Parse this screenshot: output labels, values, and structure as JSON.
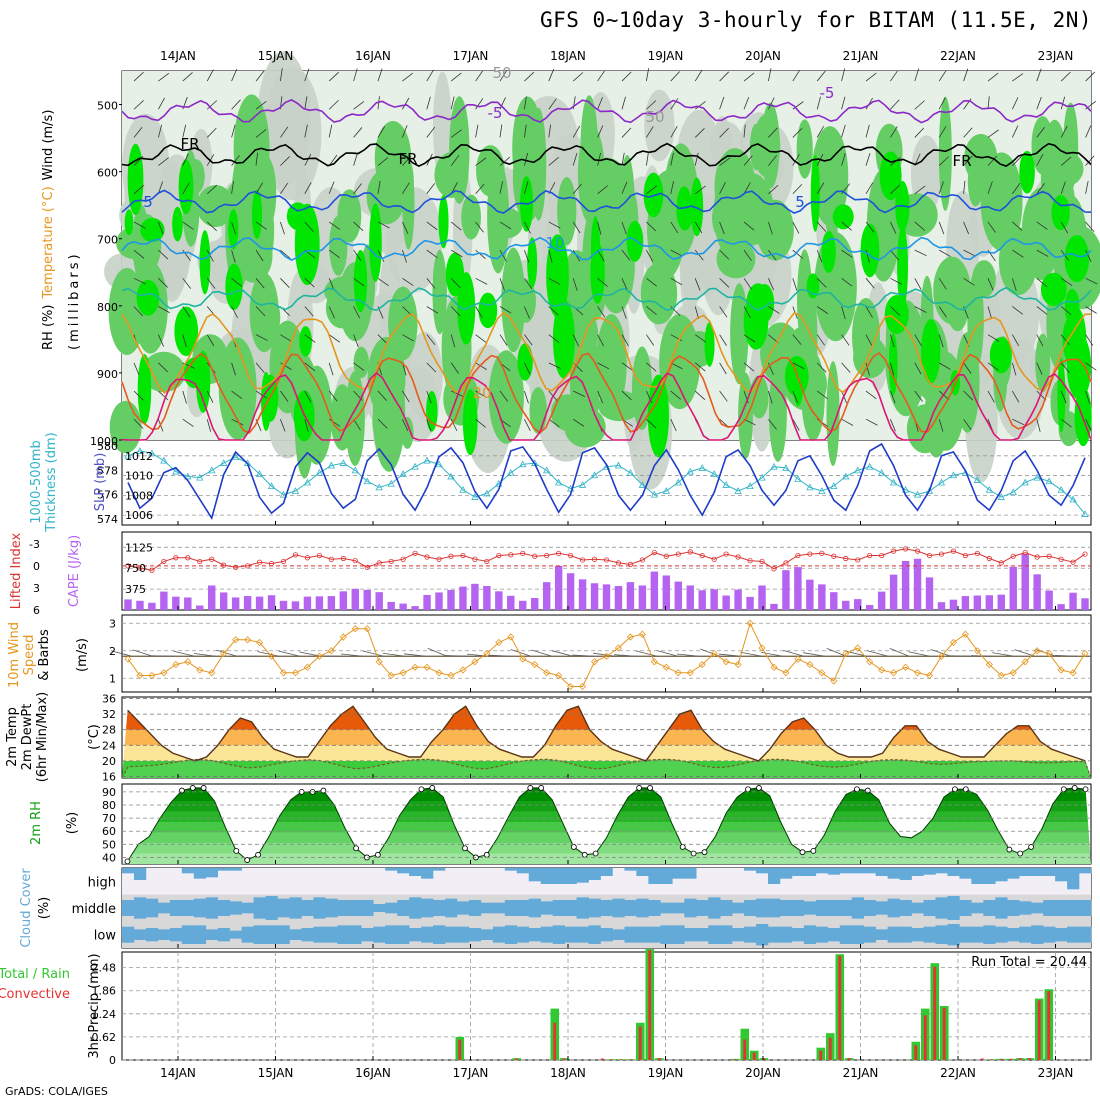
{
  "title": "GFS 0~10day 3-hourly for BITAM (11.5E, 2N)",
  "footer": "GrADS: COLA/IGES",
  "colors": {
    "rh_light": "#e6f0e6",
    "rh_grey": "#c8d2c8",
    "rh_green": "#64cd64",
    "rh_bright": "#00e600",
    "slp_line": "#1e3cc8",
    "thickness_line": "#32b4c8",
    "lifted_index": "#dc3232",
    "cape_bar": "#b464f0",
    "wind_speed": "#e6961e",
    "temp_fill_high": "#e65a0a",
    "temp_fill_mid": "#fab450",
    "temp_fill_low": "#fae696",
    "dewpoint_fill": "#3ccd3c",
    "rh2m_fill": "#00a000",
    "cloud_blue": "#64aad8",
    "precip_total": "#32c832",
    "precip_conv": "#e63232"
  },
  "chart_data": [
    {
      "type": "heatmap",
      "name": "Vertical cross-section",
      "ylabel_parts": [
        "RH (%)",
        "Temperature (°C)",
        "Wind (m/s)"
      ],
      "yunit": "(millibars)",
      "ylim": [
        1000,
        450
      ],
      "yticks": [
        "500",
        "600",
        "700",
        "800",
        "900",
        "1000"
      ],
      "x_dates": [
        "14JAN",
        "15JAN",
        "16JAN",
        "17JAN",
        "18JAN",
        "19JAN",
        "20JAN",
        "21JAN",
        "22JAN",
        "23JAN"
      ],
      "contour_labels": [
        "-5",
        "-5",
        "FR",
        "FR",
        "FR",
        "5",
        "5",
        "10",
        "20",
        "50",
        "50"
      ],
      "isotherms": [
        {
          "name": "-5",
          "level_mb": 510,
          "color": "#8c28c8"
        },
        {
          "name": "FR",
          "level_mb": 575,
          "color": "#000000"
        },
        {
          "name": "5",
          "level_mb": 645,
          "color": "#1e50dc"
        },
        {
          "name": "10",
          "level_mb": 715,
          "color": "#1e96e6"
        },
        {
          "name": "15",
          "level_mb": 790,
          "color": "#1eb4a0"
        },
        {
          "name": "20",
          "level_mb": 870,
          "color": "#e6961e"
        },
        {
          "name": "25",
          "level_mb": 930,
          "color": "#e65a1e"
        },
        {
          "name": "30",
          "level_mb": 960,
          "color": "#dc1478"
        }
      ]
    },
    {
      "type": "line",
      "name": "SLP and 1000-500mb thickness",
      "ylabel_left": "1000-500mb Thickness (dm)",
      "ylabel_right": "SLP (mb)",
      "left_ticks": [
        "580",
        "578",
        "576",
        "574"
      ],
      "right_ticks": [
        "1012",
        "1010",
        "1008",
        "1006"
      ],
      "left_lim": [
        573.5,
        580.5
      ],
      "right_lim": [
        1005,
        1013.6
      ],
      "slp_mb": [
        1009.3,
        1006.7,
        1007.7,
        1010.3,
        1010.8,
        1009.5,
        1007.6,
        1005.7,
        1010.1,
        1012.4,
        1011.2,
        1007.8,
        1006.2,
        1007.2,
        1010.9,
        1012.3,
        1011.3,
        1008.2,
        1006.7,
        1007.6,
        1011.5,
        1012.7,
        1011.1,
        1008.1,
        1006.5,
        1008.8,
        1011.9,
        1012.8,
        1011.3,
        1008.4,
        1006.7,
        1008.6,
        1012.5,
        1012.9,
        1011.2,
        1008.6,
        1006.3,
        1008.1,
        1012.3,
        1012.8,
        1011.1,
        1008.0,
        1006.5,
        1008.0,
        1011.0,
        1012.6,
        1010.6,
        1008.0,
        1006.0,
        1008.3,
        1011.9,
        1012.6,
        1011.0,
        1008.5,
        1007.0,
        1008.5,
        1011.5,
        1012.0,
        1010.0,
        1007.5,
        1006.5,
        1009.0,
        1012.5,
        1013.2,
        1011.0,
        1008.0,
        1006.5,
        1008.5,
        1012.0,
        1012.4,
        1010.5,
        1007.5,
        1006.5,
        1008.5,
        1011.5,
        1012.5,
        1010.5,
        1008.0,
        1007.0,
        1009.0,
        1011.8
      ],
      "thickness_dm": [
        579.2,
        579.6,
        579.4,
        578.8,
        577.9,
        577.5,
        577.4,
        578.0,
        578.6,
        579.1,
        578.6,
        577.7,
        576.7,
        576.0,
        576.3,
        577.0,
        577.8,
        578.4,
        578.6,
        578.0,
        577.1,
        576.6,
        576.9,
        577.7,
        578.3,
        578.8,
        578.5,
        577.5,
        576.4,
        575.8,
        576.1,
        576.9,
        577.8,
        578.5,
        578.6,
        578.0,
        577.0,
        576.5,
        576.8,
        577.6,
        578.3,
        578.4,
        577.8,
        576.8,
        576.0,
        576.3,
        577.0,
        577.9,
        578.2,
        577.7,
        576.8,
        576.3,
        576.7,
        577.4,
        578.3,
        578.2,
        577.3,
        576.6,
        576.3,
        576.7,
        577.5,
        578.0,
        578.3,
        577.8,
        577.0,
        576.4,
        576.0,
        576.3,
        577.0,
        577.6,
        577.8,
        577.2,
        576.4,
        575.8,
        576.2,
        577.0,
        577.4,
        577.1,
        576.4,
        575.6,
        574.4
      ]
    },
    {
      "type": "bar",
      "name": "Lifted Index and CAPE",
      "ylabel_left": "Lifted Index",
      "ylabel_right": "CAPE (J/kg)",
      "left_ticks": [
        "-3",
        "0",
        "3",
        "6"
      ],
      "right_ticks": [
        "1125",
        "750",
        "375"
      ],
      "left_lim": [
        6,
        -4.6
      ],
      "right_lim": [
        0,
        1400
      ],
      "lifted_index": [
        0.0,
        0.3,
        0.6,
        -0.6,
        -1.1,
        -1.1,
        -0.6,
        -0.9,
        -0.1,
        0.2,
        0.0,
        -0.5,
        -0.3,
        -0.6,
        -1.5,
        -1.1,
        -1.4,
        -0.9,
        -1.0,
        -0.7,
        0.2,
        -0.4,
        -0.6,
        -0.9,
        -1.7,
        -1.2,
        -0.9,
        -1.3,
        -1.4,
        -0.9,
        -0.6,
        -1.4,
        -1.5,
        -1.7,
        -1.3,
        -1.4,
        -1.7,
        -1.4,
        -0.8,
        -0.9,
        -0.8,
        -0.4,
        -0.2,
        -0.8,
        -1.8,
        -1.3,
        -1.6,
        -1.9,
        -1.4,
        -0.9,
        -1.6,
        -1.2,
        -0.7,
        -0.6,
        0.4,
        -0.4,
        -1.4,
        -1.6,
        -1.7,
        -1.3,
        -1.0,
        -0.8,
        -1.4,
        -1.4,
        -2.0,
        -2.3,
        -2.0,
        -1.4,
        -1.6,
        -2.0,
        -1.4,
        -1.7,
        -1.0,
        -0.4,
        -1.3,
        -1.8,
        -1.2,
        -1.3,
        -0.9,
        -0.5,
        -1.6
      ],
      "cape_jkg": [
        190,
        165,
        130,
        330,
        240,
        225,
        80,
        440,
        315,
        225,
        250,
        240,
        265,
        165,
        155,
        240,
        245,
        250,
        335,
        380,
        360,
        320,
        145,
        115,
        70,
        270,
        315,
        360,
        420,
        470,
        430,
        335,
        255,
        165,
        215,
        500,
        790,
        660,
        550,
        480,
        460,
        430,
        500,
        440,
        690,
        620,
        510,
        440,
        355,
        370,
        260,
        365,
        235,
        440,
        110,
        715,
        770,
        545,
        460,
        320,
        165,
        195,
        90,
        330,
        635,
        880,
        920,
        585,
        140,
        185,
        250,
        260,
        265,
        275,
        775,
        1005,
        640,
        350,
        105,
        310,
        210
      ],
      "cape_extra": [
        520,
        580
      ]
    },
    {
      "type": "line",
      "name": "10m Wind Speed & Barbs",
      "ylabel": "10m Wind Speed & Barbs (m/s)",
      "yticks": [
        "3",
        "2",
        "1"
      ],
      "ylim": [
        0.5,
        3.3
      ],
      "speed_ms": [
        1.7,
        1.1,
        1.1,
        1.2,
        1.5,
        1.6,
        1.3,
        1.2,
        1.9,
        2.4,
        2.4,
        2.3,
        1.8,
        1.2,
        1.2,
        1.4,
        1.8,
        2.0,
        2.5,
        2.8,
        2.8,
        1.6,
        1.1,
        1.2,
        1.4,
        1.4,
        1.2,
        1.1,
        1.3,
        1.6,
        1.9,
        2.3,
        2.5,
        1.7,
        1.5,
        1.2,
        1.1,
        0.7,
        0.7,
        1.6,
        1.8,
        2.1,
        2.5,
        2.6,
        1.6,
        1.4,
        1.2,
        1.2,
        1.5,
        1.9,
        1.6,
        1.5,
        3.0,
        2.1,
        1.4,
        1.2,
        1.7,
        1.5,
        1.2,
        0.9,
        1.9,
        2.1,
        1.6,
        1.3,
        1.2,
        1.4,
        1.2,
        1.1,
        1.8,
        2.3,
        2.6,
        2.0,
        1.5,
        1.1,
        1.2,
        1.6,
        2.0,
        1.9,
        1.3,
        1.2,
        1.9
      ],
      "barb_ref_ms": 1.8
    },
    {
      "type": "area",
      "name": "2m Temperature",
      "ylabel": "2m Temp 2m DewPt (6hr Min/Max) (°C)",
      "yticks": [
        "36",
        "32",
        "28",
        "24",
        "20",
        "16"
      ],
      "ylim": [
        15.6,
        36.4
      ],
      "temp_c": [
        33,
        30,
        27,
        24,
        22,
        21,
        20,
        21,
        24,
        28,
        31,
        30,
        26,
        23,
        22,
        21,
        21,
        25,
        29,
        32,
        34,
        30,
        26,
        23,
        22,
        21,
        21,
        25,
        28,
        32,
        34,
        29,
        25,
        23,
        22,
        21,
        21,
        24,
        29,
        33,
        34,
        28,
        25,
        23,
        22,
        21,
        20,
        24,
        28,
        32,
        33,
        28,
        25,
        23,
        22,
        21,
        20,
        23,
        27,
        30,
        31,
        28,
        24,
        22,
        21,
        21,
        21,
        22,
        26,
        29,
        29,
        25,
        23,
        22,
        21,
        21,
        21,
        24,
        27,
        29,
        29,
        25,
        23,
        22,
        21,
        20
      ],
      "dewpoint_c": [
        18.5,
        18.6,
        18.8,
        19.2,
        19.7,
        20.2,
        20.4,
        20.1,
        19.4,
        18.7,
        18.2,
        18.4,
        19.0,
        19.6,
        20.0,
        20.3,
        20.1,
        19.4,
        18.6,
        18.0,
        18.2,
        18.8,
        19.5,
        20.0,
        20.3,
        20.4,
        20.2,
        19.5,
        18.7,
        18.1,
        18.0,
        18.6,
        19.4,
        20.0,
        20.3,
        20.4,
        20.1,
        19.3,
        18.5,
        18.0,
        18.1,
        18.8,
        19.5,
        20.1,
        20.3,
        20.4,
        20.2,
        19.5,
        18.7,
        18.3,
        18.4,
        19.0,
        19.7,
        20.2,
        20.4,
        20.3,
        19.9,
        19.2,
        18.6,
        18.4,
        18.6,
        19.2,
        19.8,
        20.2,
        20.3,
        20.2,
        19.8,
        19.3,
        19.1,
        19.3,
        19.6,
        19.8,
        19.9,
        20.0,
        20.0,
        19.7,
        19.5,
        19.5,
        19.6,
        19.8,
        19.8
      ]
    },
    {
      "type": "area",
      "name": "2m RH",
      "ylabel": "2m RH (%)",
      "yticks": [
        "90",
        "80",
        "70",
        "60",
        "50",
        "40"
      ],
      "ylim": [
        35,
        96
      ],
      "rh_pct": [
        37,
        50,
        56,
        70,
        82,
        91,
        93,
        93,
        83,
        63,
        45,
        38,
        42,
        56,
        72,
        84,
        90,
        90,
        91,
        80,
        62,
        47,
        40,
        42,
        55,
        72,
        84,
        92,
        93,
        86,
        65,
        47,
        40,
        42,
        55,
        71,
        86,
        93,
        93,
        84,
        66,
        48,
        42,
        43,
        55,
        72,
        86,
        93,
        93,
        86,
        66,
        48,
        43,
        44,
        56,
        74,
        86,
        92,
        93,
        87,
        67,
        50,
        44,
        45,
        57,
        75,
        88,
        92,
        91,
        84,
        66,
        56,
        55,
        60,
        70,
        86,
        92,
        92,
        88,
        76,
        60,
        46,
        43,
        48,
        62,
        81,
        92,
        93,
        92
      ]
    },
    {
      "type": "bar",
      "name": "Cloud Cover",
      "ylabel": "Cloud Cover (%)",
      "layers": [
        "high",
        "middle",
        "low"
      ],
      "high_pct": [
        20,
        45,
        0,
        0,
        0,
        20,
        40,
        35,
        10,
        10,
        0,
        0,
        0,
        0,
        0,
        0,
        0,
        0,
        0,
        0,
        0,
        0,
        10,
        20,
        30,
        40,
        10,
        0,
        0,
        0,
        0,
        0,
        10,
        20,
        50,
        60,
        60,
        60,
        55,
        45,
        30,
        0,
        10,
        30,
        60,
        60,
        40,
        40,
        0,
        0,
        0,
        0,
        10,
        20,
        60,
        40,
        30,
        30,
        20,
        25,
        20,
        20,
        20,
        30,
        40,
        45,
        30,
        25,
        20,
        30,
        40,
        60,
        60,
        50,
        40,
        30,
        30,
        30,
        50,
        80,
        20
      ],
      "middle_pct": [
        60,
        80,
        70,
        40,
        60,
        60,
        70,
        80,
        60,
        50,
        40,
        80,
        90,
        70,
        80,
        60,
        80,
        70,
        60,
        60,
        60,
        30,
        40,
        60,
        80,
        70,
        60,
        70,
        50,
        60,
        40,
        40,
        60,
        60,
        70,
        50,
        60,
        60,
        80,
        70,
        60,
        70,
        60,
        70,
        60,
        40,
        40,
        70,
        60,
        80,
        60,
        40,
        60,
        70,
        70,
        60,
        60,
        50,
        60,
        60,
        60,
        80,
        60,
        50,
        70,
        60,
        40,
        60,
        80,
        90,
        60,
        40,
        60,
        80,
        60,
        50,
        40,
        60,
        60,
        60,
        60
      ],
      "low_pct": [
        60,
        40,
        50,
        40,
        50,
        70,
        70,
        40,
        50,
        30,
        60,
        70,
        70,
        70,
        40,
        50,
        60,
        60,
        70,
        70,
        50,
        60,
        70,
        70,
        50,
        60,
        70,
        60,
        60,
        50,
        40,
        60,
        70,
        60,
        50,
        60,
        70,
        60,
        60,
        70,
        50,
        40,
        60,
        60,
        60,
        70,
        70,
        50,
        50,
        70,
        70,
        50,
        60,
        80,
        60,
        60,
        50,
        70,
        60,
        50,
        70,
        70,
        60,
        40,
        60,
        60,
        50,
        60,
        70,
        80,
        60,
        60,
        70,
        60,
        50,
        60,
        70,
        60,
        50,
        60,
        60
      ]
    },
    {
      "type": "bar",
      "name": "3hr Precip",
      "ylabel": "Total / Rain Convective 3hr Precip (mm)",
      "yticks": [
        "2.48",
        "1.86",
        "1.24",
        "0.62",
        "0"
      ],
      "ylim": [
        0,
        2.9
      ],
      "annotation": "Run Total = 20.44",
      "total_mm": [
        0,
        0,
        0,
        0,
        0,
        0,
        0,
        0,
        0,
        0,
        0,
        0,
        0,
        0,
        0,
        0,
        0,
        0,
        0,
        0,
        0,
        0,
        0,
        0,
        0,
        0,
        0,
        0,
        0,
        0,
        0,
        0,
        0,
        0,
        0,
        0.62,
        0,
        0,
        0,
        0,
        0,
        0.05,
        0,
        0,
        0,
        1.38,
        0.05,
        0,
        0,
        0,
        0,
        0.02,
        0.02,
        0.02,
        1.0,
        2.98,
        0.05,
        0,
        0,
        0,
        0,
        0,
        0,
        0,
        0.03,
        0.84,
        0.25,
        0.05,
        0,
        0,
        0,
        0,
        0,
        0.33,
        0.72,
        2.84,
        0.05,
        0,
        0,
        0,
        0,
        0,
        0,
        0.49,
        1.38,
        2.6,
        1.45,
        0,
        0,
        0,
        0,
        0.02,
        0.03,
        0.03,
        0.05,
        0.05,
        1.65,
        1.9,
        0,
        0,
        0,
        0
      ],
      "conv_mm": [
        0,
        0,
        0,
        0,
        0,
        0,
        0,
        0,
        0,
        0,
        0,
        0,
        0,
        0,
        0,
        0,
        0,
        0,
        0,
        0,
        0,
        0,
        0,
        0,
        0,
        0,
        0,
        0,
        0,
        0,
        0,
        0,
        0,
        0,
        0,
        0.55,
        0,
        0,
        0,
        0,
        0,
        0.04,
        0,
        0,
        0,
        1.0,
        0.04,
        0,
        0,
        0,
        0.04,
        0.02,
        0.02,
        0.02,
        0.9,
        2.95,
        0.05,
        0,
        0,
        0,
        0,
        0,
        0,
        0,
        0.02,
        0.55,
        0.2,
        0.05,
        0,
        0,
        0,
        0,
        0,
        0.25,
        0.6,
        2.8,
        0.05,
        0,
        0,
        0,
        0,
        0,
        0,
        0.4,
        1.2,
        2.5,
        1.4,
        0,
        0,
        0,
        0.04,
        0.02,
        0.03,
        0.03,
        0.05,
        0.05,
        1.6,
        1.85,
        0,
        0,
        0,
        0
      ]
    }
  ]
}
